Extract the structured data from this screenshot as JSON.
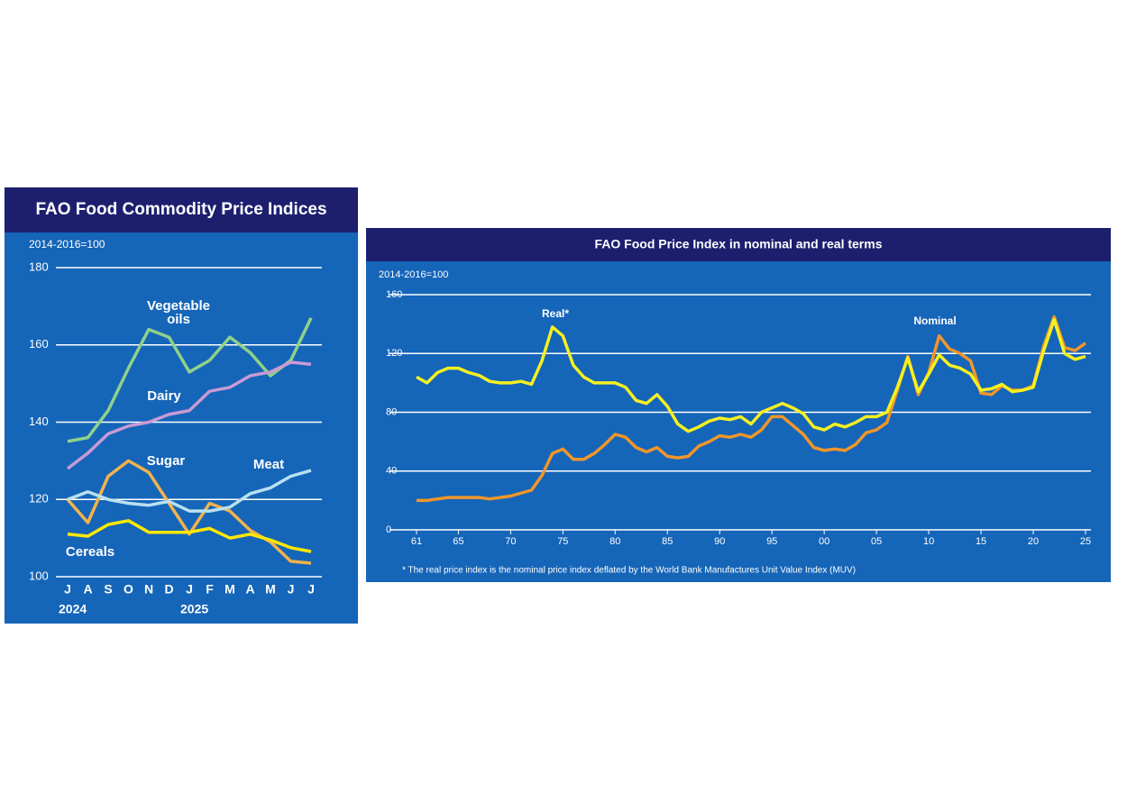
{
  "chart_data": [
    {
      "type": "line",
      "title": "FAO Food Commodity Price Indices",
      "unit": "2014-2016=100",
      "categories": [
        "J",
        "A",
        "S",
        "O",
        "N",
        "D",
        "J",
        "F",
        "M",
        "A",
        "M",
        "J",
        "J"
      ],
      "year_labels": [
        "2024",
        "2025"
      ],
      "ylim": [
        100,
        180
      ],
      "yticks": [
        100,
        120,
        140,
        160,
        180
      ],
      "grid": true,
      "series": [
        {
          "name": "Vegetable oils",
          "color": "#8fd18a",
          "values": [
            135,
            136,
            143,
            154,
            164,
            162,
            153,
            156,
            162,
            158,
            152,
            156,
            167
          ]
        },
        {
          "name": "Dairy",
          "color": "#c99ad6",
          "values": [
            128,
            132,
            137,
            139,
            140,
            142,
            143,
            148,
            149,
            152,
            153,
            155.5,
            155
          ]
        },
        {
          "name": "Sugar",
          "color": "#f2b24c",
          "values": [
            120,
            114,
            126,
            130,
            127,
            119,
            111,
            119,
            117,
            112,
            109,
            104,
            103.5
          ]
        },
        {
          "name": "Meat",
          "color": "#b8e0f0",
          "values": [
            120,
            122,
            120,
            119,
            118.5,
            119.5,
            117,
            117,
            118,
            121.5,
            123,
            126,
            127.5
          ]
        },
        {
          "name": "Cereals",
          "color": "#ffe800",
          "values": [
            111,
            110.5,
            113.5,
            114.5,
            111.5,
            111.5,
            111.5,
            112.5,
            110,
            111,
            109.5,
            107.5,
            106.5
          ]
        }
      ]
    },
    {
      "type": "line",
      "title": "FAO Food Price Index in nominal and real terms",
      "unit": "2014-2016=100",
      "footnote": "* The real price index is the nominal price index deflated by the World Bank Manufactures Unit Value Index (MUV)",
      "x": [
        1961,
        1962,
        1963,
        1964,
        1965,
        1966,
        1967,
        1968,
        1969,
        1970,
        1971,
        1972,
        1973,
        1974,
        1975,
        1976,
        1977,
        1978,
        1979,
        1980,
        1981,
        1982,
        1983,
        1984,
        1985,
        1986,
        1987,
        1988,
        1989,
        1990,
        1991,
        1992,
        1993,
        1994,
        1995,
        1996,
        1997,
        1998,
        1999,
        2000,
        2001,
        2002,
        2003,
        2004,
        2005,
        2006,
        2007,
        2008,
        2009,
        2010,
        2011,
        2012,
        2013,
        2014,
        2015,
        2016,
        2017,
        2018,
        2019,
        2020,
        2021,
        2022,
        2023,
        2024,
        2025
      ],
      "xlim": [
        1961,
        2025
      ],
      "xticks": [
        {
          "value": 1961,
          "label": "61"
        },
        {
          "value": 1965,
          "label": "65"
        },
        {
          "value": 1970,
          "label": "70"
        },
        {
          "value": 1975,
          "label": "75"
        },
        {
          "value": 1980,
          "label": "80"
        },
        {
          "value": 1985,
          "label": "85"
        },
        {
          "value": 1990,
          "label": "90"
        },
        {
          "value": 1995,
          "label": "95"
        },
        {
          "value": 2000,
          "label": "00"
        },
        {
          "value": 2005,
          "label": "05"
        },
        {
          "value": 2010,
          "label": "10"
        },
        {
          "value": 2015,
          "label": "15"
        },
        {
          "value": 2020,
          "label": "20"
        },
        {
          "value": 2025,
          "label": "25"
        }
      ],
      "ylim": [
        0,
        160
      ],
      "yticks": [
        0,
        40,
        80,
        120,
        160
      ],
      "grid": true,
      "series": [
        {
          "name": "Nominal",
          "color": "#f0962a",
          "values": [
            20,
            20,
            21,
            22,
            22,
            22,
            22,
            21,
            22,
            23,
            25,
            27,
            37,
            52,
            55,
            48,
            48,
            52,
            58,
            65,
            63,
            56,
            53,
            56,
            50,
            49,
            50,
            57,
            60,
            64,
            63,
            65,
            63,
            68,
            77,
            77,
            71,
            65,
            56,
            54,
            55,
            54,
            58,
            66,
            68,
            73,
            95,
            118,
            92,
            107,
            132,
            123,
            120,
            115,
            93,
            92,
            98,
            95,
            95,
            98,
            125,
            145,
            124,
            122,
            127
          ]
        },
        {
          "name": "Real*",
          "color": "#f5f020",
          "values": [
            104,
            100,
            107,
            110,
            110,
            107,
            105,
            101,
            100,
            100,
            101,
            99,
            115,
            138,
            132,
            112,
            104,
            100,
            100,
            100,
            97,
            88,
            86,
            92,
            84,
            72,
            67,
            70,
            74,
            76,
            75,
            77,
            72,
            80,
            83,
            86,
            83,
            79,
            70,
            68,
            72,
            70,
            73,
            77,
            77,
            80,
            97,
            117,
            94,
            106,
            119,
            112,
            110,
            106,
            95,
            96,
            99,
            94,
            95,
            97,
            122,
            143,
            120,
            116,
            118
          ]
        }
      ]
    }
  ]
}
